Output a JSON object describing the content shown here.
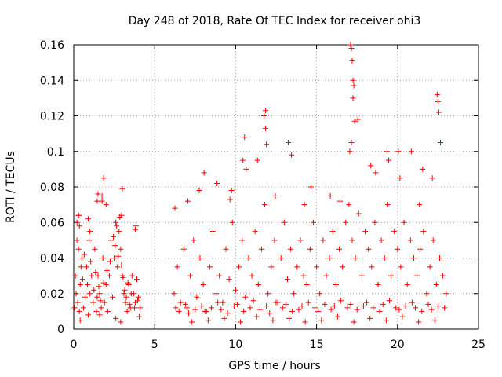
{
  "chart_data": {
    "type": "scatter",
    "title": "Day 248 of 2018, Rate Of TEC Index for receiver ohi3",
    "xlabel": "GPS time / hours",
    "ylabel": "ROTI / TECUs",
    "xlim": [
      0,
      25
    ],
    "ylim": [
      0,
      0.16
    ],
    "x_ticks": [
      0,
      5,
      10,
      15,
      20,
      25
    ],
    "y_ticks": [
      0,
      0.02,
      0.04,
      0.06,
      0.08,
      0.1,
      0.12,
      0.14,
      0.16
    ],
    "x_tick_labels": [
      "0",
      "5",
      "10",
      "15",
      "20",
      "25"
    ],
    "y_tick_labels": [
      "0",
      "0.02",
      "0.04",
      "0.06",
      "0.08",
      "0.1",
      "0.12",
      "0.14",
      "0.16"
    ],
    "grid": true,
    "marker": "+",
    "color": "#ff0000",
    "series": [
      {
        "x": [
          0.05,
          0.1,
          0.15,
          0.2,
          0.25,
          0.3,
          0.35,
          0.4,
          0.5,
          0.6,
          0.7,
          0.8,
          0.9,
          1.0,
          1.1,
          1.2,
          1.3,
          1.4,
          1.5,
          1.6,
          1.7,
          1.8,
          1.9,
          2.0,
          2.1,
          2.2,
          2.3,
          2.4,
          2.5,
          2.6,
          2.7,
          2.8,
          2.9,
          3.0,
          3.1,
          3.2,
          3.3,
          3.4,
          3.5,
          3.6,
          3.7,
          3.8,
          3.9,
          4.0,
          4.1,
          0.2,
          0.3,
          0.45,
          0.55,
          0.65,
          0.85,
          0.95,
          1.05,
          1.25,
          1.35,
          1.45,
          1.55,
          1.65,
          1.75,
          1.85,
          2.05,
          2.25,
          2.45,
          2.55,
          2.65,
          2.75,
          2.85,
          2.95,
          3.05,
          3.15,
          3.25,
          3.35,
          3.45,
          3.55,
          3.75,
          3.95,
          0.3,
          0.35,
          0.9,
          1.0,
          1.45,
          1.5,
          1.75,
          1.85,
          2.0,
          2.95,
          3.0,
          3.8,
          3.85,
          0.4,
          1.6,
          2.6,
          2.9,
          4.05
        ],
        "y": [
          0.012,
          0.03,
          0.02,
          0.05,
          0.015,
          0.045,
          0.01,
          0.025,
          0.04,
          0.012,
          0.018,
          0.035,
          0.008,
          0.02,
          0.03,
          0.015,
          0.045,
          0.01,
          0.03,
          0.02,
          0.012,
          0.04,
          0.015,
          0.025,
          0.01,
          0.03,
          0.05,
          0.018,
          0.04,
          0.06,
          0.035,
          0.055,
          0.045,
          0.03,
          0.02,
          0.015,
          0.01,
          0.025,
          0.012,
          0.03,
          0.02,
          0.015,
          0.028,
          0.018,
          0.012,
          0.06,
          0.064,
          0.035,
          0.028,
          0.042,
          0.025,
          0.05,
          0.038,
          0.022,
          0.032,
          0.018,
          0.024,
          0.016,
          0.072,
          0.026,
          0.033,
          0.038,
          0.052,
          0.047,
          0.058,
          0.041,
          0.063,
          0.036,
          0.029,
          0.022,
          0.018,
          0.026,
          0.014,
          0.02,
          0.012,
          0.016,
          0.064,
          0.058,
          0.062,
          0.055,
          0.072,
          0.076,
          0.075,
          0.085,
          0.07,
          0.064,
          0.079,
          0.056,
          0.058,
          0.005,
          0.008,
          0.006,
          0.004,
          0.007
        ]
      },
      {
        "x": [
          6.2,
          6.4,
          6.6,
          6.8,
          7.0,
          7.2,
          7.4,
          7.6,
          7.8,
          8.0,
          8.2,
          8.4,
          8.6,
          8.8,
          9.0,
          9.2,
          9.4,
          9.6,
          9.8,
          10.0,
          10.2,
          10.4,
          10.6,
          10.8,
          11.0,
          11.2,
          11.4,
          11.6,
          11.8,
          12.0,
          12.2,
          12.4,
          12.6,
          12.8,
          13.0,
          13.2,
          13.4,
          13.6,
          13.8,
          14.0,
          14.2,
          14.4,
          14.6,
          14.8,
          15.0,
          15.2,
          15.4,
          15.6,
          15.8,
          16.0,
          16.2,
          16.4,
          16.6,
          16.8,
          17.0,
          17.2,
          17.4,
          17.6,
          17.8,
          18.0,
          18.2,
          18.4,
          18.6,
          18.8,
          19.0,
          19.2,
          19.4,
          19.6,
          19.8,
          20.0,
          20.2,
          20.4,
          20.6,
          20.8,
          21.0,
          21.2,
          21.4,
          21.6,
          21.8,
          22.0,
          22.2,
          22.4,
          22.6,
          22.8,
          23.0,
          6.3,
          6.5,
          6.9,
          7.1,
          7.5,
          7.9,
          8.1,
          8.5,
          8.9,
          9.1,
          9.5,
          9.9,
          10.1,
          10.5,
          10.9,
          11.1,
          11.5,
          11.9,
          12.1,
          12.5,
          12.9,
          13.1,
          13.5,
          13.9,
          14.1,
          14.5,
          14.9,
          15.1,
          15.5,
          15.9,
          16.1,
          16.5,
          16.9,
          17.1,
          17.5,
          17.9,
          18.1,
          18.5,
          18.9,
          19.1,
          19.5,
          19.9,
          20.1,
          20.5,
          20.9,
          21.1,
          21.5,
          21.9,
          22.1,
          22.5,
          22.9,
          6.25,
          7.05,
          7.75,
          8.05,
          8.85,
          9.65,
          9.75,
          10.45,
          10.55,
          10.65,
          11.35,
          11.75,
          11.85,
          12.45,
          13.25,
          13.45,
          14.25,
          14.65,
          15.85,
          16.45,
          17.05,
          17.15,
          17.25,
          17.55,
          18.35,
          18.65,
          19.35,
          19.45,
          20.05,
          20.15,
          20.85,
          21.35,
          21.55,
          22.15,
          22.45,
          22.5,
          22.55,
          22.65,
          7.3,
          8.3,
          9.3,
          10.3,
          11.3,
          12.3,
          13.3,
          14.3,
          15.3,
          16.3,
          17.3,
          18.3,
          19.3,
          20.3,
          21.3,
          22.3,
          17.1,
          17.15,
          17.2,
          17.25,
          17.3,
          17.35,
          11.85,
          11.9
        ],
        "y": [
          0.02,
          0.035,
          0.015,
          0.045,
          0.012,
          0.03,
          0.05,
          0.018,
          0.04,
          0.025,
          0.01,
          0.035,
          0.055,
          0.02,
          0.03,
          0.015,
          0.045,
          0.028,
          0.06,
          0.022,
          0.035,
          0.05,
          0.018,
          0.04,
          0.03,
          0.055,
          0.025,
          0.045,
          0.07,
          0.02,
          0.035,
          0.05,
          0.015,
          0.04,
          0.06,
          0.028,
          0.045,
          0.02,
          0.035,
          0.05,
          0.03,
          0.025,
          0.045,
          0.06,
          0.035,
          0.02,
          0.05,
          0.03,
          0.04,
          0.055,
          0.025,
          0.045,
          0.035,
          0.06,
          0.07,
          0.05,
          0.04,
          0.065,
          0.03,
          0.055,
          0.045,
          0.035,
          0.06,
          0.025,
          0.05,
          0.04,
          0.07,
          0.03,
          0.055,
          0.045,
          0.035,
          0.06,
          0.025,
          0.05,
          0.04,
          0.03,
          0.045,
          0.055,
          0.02,
          0.035,
          0.05,
          0.025,
          0.04,
          0.03,
          0.02,
          0.012,
          0.01,
          0.014,
          0.009,
          0.011,
          0.013,
          0.01,
          0.012,
          0.015,
          0.011,
          0.009,
          0.013,
          0.014,
          0.01,
          0.012,
          0.016,
          0.011,
          0.013,
          0.009,
          0.015,
          0.012,
          0.014,
          0.01,
          0.011,
          0.013,
          0.015,
          0.012,
          0.01,
          0.014,
          0.011,
          0.013,
          0.016,
          0.012,
          0.014,
          0.011,
          0.013,
          0.015,
          0.012,
          0.01,
          0.014,
          0.016,
          0.012,
          0.011,
          0.013,
          0.015,
          0.012,
          0.01,
          0.014,
          0.011,
          0.013,
          0.012,
          0.068,
          0.072,
          0.078,
          0.088,
          0.082,
          0.073,
          0.078,
          0.095,
          0.108,
          0.09,
          0.095,
          0.12,
          0.123,
          0.075,
          0.105,
          0.098,
          0.07,
          0.08,
          0.075,
          0.072,
          0.1,
          0.105,
          0.13,
          0.118,
          0.092,
          0.088,
          0.1,
          0.095,
          0.1,
          0.085,
          0.1,
          0.07,
          0.09,
          0.085,
          0.132,
          0.128,
          0.122,
          0.105,
          0.004,
          0.005,
          0.006,
          0.004,
          0.007,
          0.005,
          0.006,
          0.004,
          0.005,
          0.007,
          0.004,
          0.006,
          0.005,
          0.007,
          0.004,
          0.005,
          0.16,
          0.158,
          0.151,
          0.14,
          0.137,
          0.117,
          0.113,
          0.104
        ]
      }
    ]
  }
}
